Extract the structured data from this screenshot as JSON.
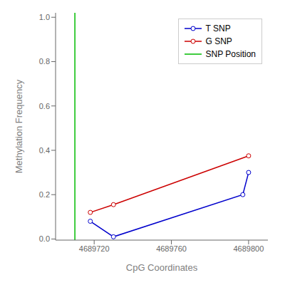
{
  "chart_data": {
    "type": "line",
    "xlabel": "CpG Coordinates",
    "ylabel": "Methylation Frequency",
    "marker": "circle",
    "legend": "upper right",
    "grid": false,
    "xlim": [
      4689700,
      4689810
    ],
    "xticks": [
      4689720,
      4689760,
      4689800
    ],
    "ylim": [
      -0.005,
      1.02
    ],
    "yticks": [
      {
        "value": 0,
        "label": "0.0"
      },
      0.2,
      0.4,
      0.6,
      0.8,
      {
        "value": 1,
        "label": "1.0"
      }
    ],
    "series": [
      {
        "name": "T SNP",
        "color": "#0000CC",
        "x": [
          4689718,
          4689730,
          4689797,
          4689800
        ],
        "values": [
          0.08,
          0.01,
          0.2,
          0.3
        ]
      },
      {
        "name": "G SNP",
        "color": "#CC0000",
        "x": [
          4689718,
          4689730,
          4689800
        ],
        "values": [
          0.12,
          0.155,
          0.375
        ]
      }
    ],
    "vline": {
      "name": "SNP Position",
      "x": 4689710,
      "color": "#00BB00"
    }
  }
}
